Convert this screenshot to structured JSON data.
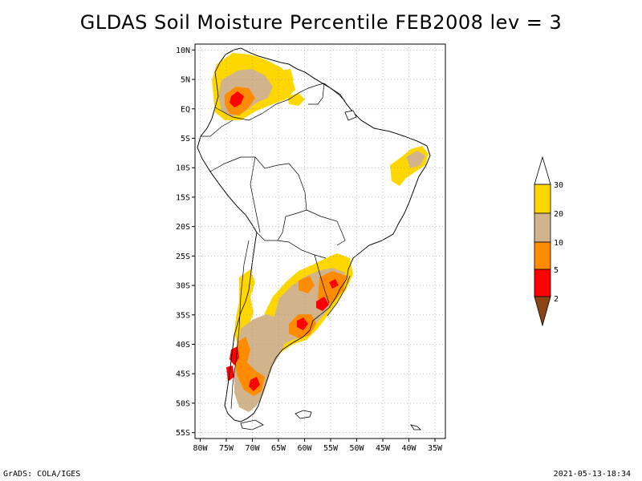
{
  "title": "GLDAS Soil Moisture Percentile FEB2008 lev = 3",
  "map": {
    "lat_labels": [
      "10N",
      "5N",
      "EQ",
      "5S",
      "10S",
      "15S",
      "20S",
      "25S",
      "30S",
      "35S",
      "40S",
      "45S",
      "50S",
      "55S"
    ],
    "lon_labels": [
      "80W",
      "75W",
      "70W",
      "65W",
      "60W",
      "55W",
      "50W",
      "45W",
      "40W",
      "35W"
    ],
    "lat_range": [
      -55,
      10
    ],
    "lon_range": [
      -80,
      -35
    ],
    "grid": true
  },
  "legend": {
    "labels": [
      "30",
      "20",
      "10",
      "5",
      "2"
    ],
    "colors": {
      "above_30": "#ffffff",
      "20_30": "#ffd700",
      "10_20": "#d2b48c",
      "5_10": "#ff8c00",
      "2_5": "#ff0000",
      "below_2": "#8b4513"
    }
  },
  "footer": {
    "left": "GrADS: COLA/IGES",
    "right": "2021-05-13-18:34"
  }
}
